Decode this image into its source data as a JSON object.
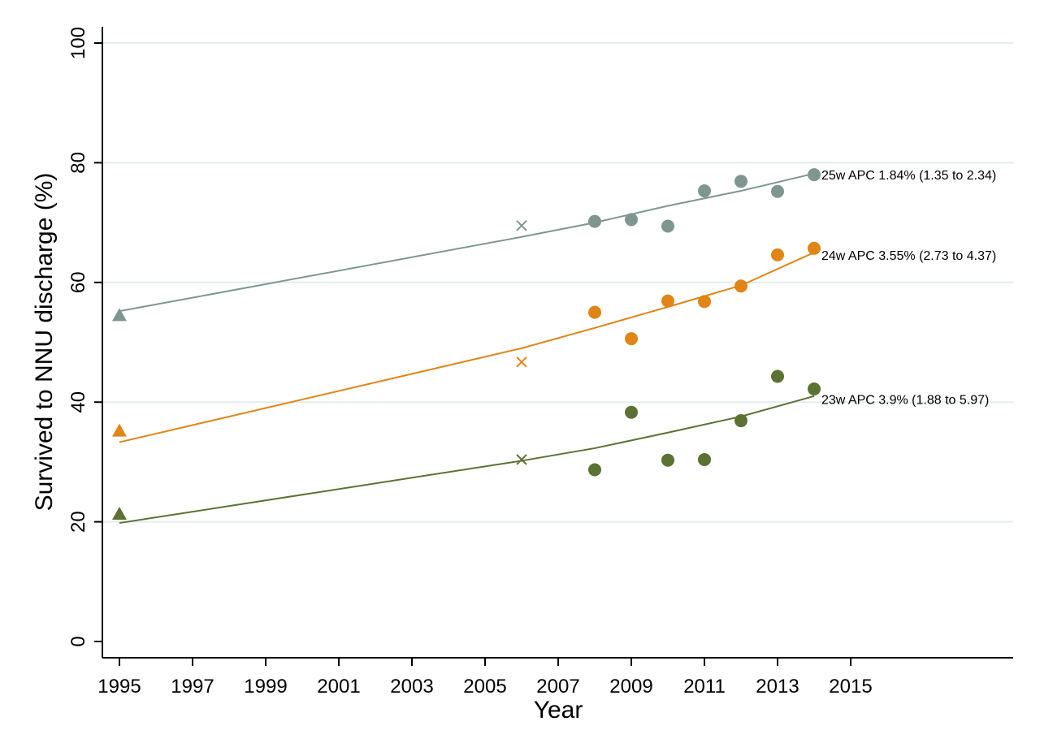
{
  "chart_data": {
    "type": "scatter",
    "title": "",
    "xlabel": "Year",
    "ylabel": "Survived to NNU discharge (%)",
    "xlim": [
      1994.5,
      2020
    ],
    "ylim": [
      -2.6,
      100
    ],
    "x_ticks": [
      1995,
      1997,
      1999,
      2001,
      2003,
      2005,
      2007,
      2009,
      2011,
      2013,
      2015
    ],
    "y_ticks": [
      0,
      20,
      40,
      60,
      80,
      100
    ],
    "grid": "horizontal",
    "legend": "none",
    "series": [
      {
        "name": "25w",
        "color": "#7f9690",
        "triangle_points": [
          {
            "x": 1995,
            "y": 54.5
          }
        ],
        "cross_points": [
          {
            "x": 2006,
            "y": 69.5
          }
        ],
        "circle_points": [
          {
            "x": 2008,
            "y": 70.2
          },
          {
            "x": 2009,
            "y": 70.5
          },
          {
            "x": 2010,
            "y": 69.4
          },
          {
            "x": 2011,
            "y": 75.3
          },
          {
            "x": 2012,
            "y": 76.9
          },
          {
            "x": 2013,
            "y": 75.2
          },
          {
            "x": 2014,
            "y": 78.0
          }
        ],
        "trend_line": [
          {
            "x": 1995,
            "y": 55.2
          },
          {
            "x": 2006,
            "y": 67.6
          },
          {
            "x": 2008,
            "y": 70.0
          },
          {
            "x": 2010,
            "y": 72.8
          },
          {
            "x": 2012,
            "y": 75.3
          },
          {
            "x": 2014,
            "y": 78.2
          }
        ],
        "annotation": "25w APC 1.84% (1.35 to 2.34)",
        "annotation_y": 78
      },
      {
        "name": "24w",
        "color": "#e08516",
        "triangle_points": [
          {
            "x": 1995,
            "y": 35.2
          }
        ],
        "cross_points": [
          {
            "x": 2006,
            "y": 46.7
          }
        ],
        "circle_points": [
          {
            "x": 2008,
            "y": 55.0
          },
          {
            "x": 2009,
            "y": 50.6
          },
          {
            "x": 2010,
            "y": 56.9
          },
          {
            "x": 2011,
            "y": 56.8
          },
          {
            "x": 2012,
            "y": 59.4
          },
          {
            "x": 2013,
            "y": 64.6
          },
          {
            "x": 2014,
            "y": 65.7
          }
        ],
        "trend_line": [
          {
            "x": 1995,
            "y": 33.3
          },
          {
            "x": 2006,
            "y": 49.0
          },
          {
            "x": 2008,
            "y": 52.4
          },
          {
            "x": 2010,
            "y": 55.9
          },
          {
            "x": 2012,
            "y": 59.5
          },
          {
            "x": 2014,
            "y": 65.0
          }
        ],
        "annotation": "24w APC 3.55% (2.73 to 4.37)",
        "annotation_y": 64.6
      },
      {
        "name": "23w",
        "color": "#5b7233",
        "triangle_points": [
          {
            "x": 1995,
            "y": 21.3
          }
        ],
        "cross_points": [
          {
            "x": 2006,
            "y": 30.4
          }
        ],
        "circle_points": [
          {
            "x": 2008,
            "y": 28.7
          },
          {
            "x": 2009,
            "y": 38.3
          },
          {
            "x": 2010,
            "y": 30.3
          },
          {
            "x": 2011,
            "y": 30.4
          },
          {
            "x": 2012,
            "y": 36.9
          },
          {
            "x": 2013,
            "y": 44.3
          },
          {
            "x": 2014,
            "y": 42.2
          }
        ],
        "trend_line": [
          {
            "x": 1995,
            "y": 19.8
          },
          {
            "x": 2006,
            "y": 30.2
          },
          {
            "x": 2008,
            "y": 32.3
          },
          {
            "x": 2010,
            "y": 34.9
          },
          {
            "x": 2012,
            "y": 37.6
          },
          {
            "x": 2014,
            "y": 41.0
          }
        ],
        "annotation": "23w APC 3.9% (1.88 to 5.97)",
        "annotation_y": 40.5
      }
    ]
  }
}
